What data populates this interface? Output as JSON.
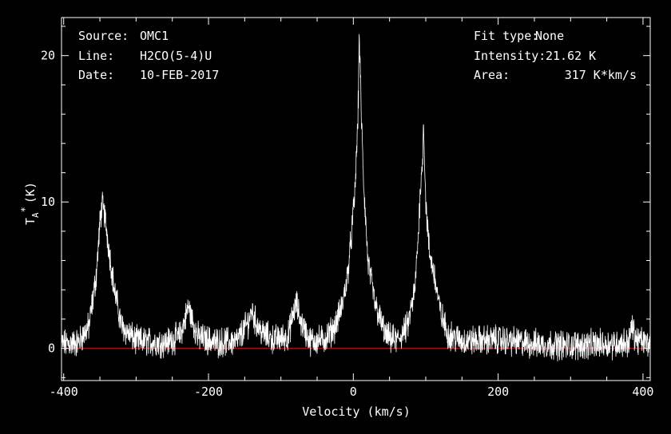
{
  "header": {
    "source_label": "Source:",
    "source_value": "OMC1",
    "line_label": "Line:",
    "line_value": "H2CO(5-4)U",
    "date_label": "Date:",
    "date_value": "10-FEB-2017",
    "fit_label": "Fit type:",
    "fit_value": "None",
    "intensity_label": "Intensity:",
    "intensity_value": "21.62 K",
    "area_label": "Area:",
    "area_value": "317 K*km/s"
  },
  "colors": {
    "background": "#000000",
    "spectrum": "#ffffff",
    "baseline": "#cc0000",
    "frame": "#ffffff"
  },
  "chart_data": {
    "type": "line",
    "xlabel": "Velocity (km/s)",
    "ylabel_main": "T",
    "ylabel_sub": "A",
    "ylabel_sup": "*",
    "ylabel_unit": "(K)",
    "xlim": [
      -403,
      410
    ],
    "ylim": [
      -2.2,
      22.6
    ],
    "xticks": [
      -400,
      -200,
      0,
      200,
      400
    ],
    "yticks": [
      0,
      10,
      20
    ],
    "grid": false,
    "baseline_y": 0,
    "series": [
      {
        "x": [
          -403,
          -380,
          -365,
          -355,
          -350,
          -347,
          -343,
          -338,
          -330,
          -320,
          -300,
          -260,
          -240,
          -232,
          -228,
          -224,
          -215,
          -190,
          -160,
          -145,
          -140,
          -135,
          -125,
          -110,
          -90,
          -82,
          -78,
          -74,
          -60,
          -40,
          -25,
          -15,
          -8,
          -3,
          2,
          5,
          7,
          8,
          9,
          11,
          14,
          20,
          30,
          45,
          60,
          75,
          85,
          90,
          93,
          95,
          97,
          100,
          105,
          112,
          120,
          130,
          150,
          200,
          250,
          300,
          350,
          380,
          385,
          390,
          410
        ],
        "y": [
          0.3,
          0.4,
          1.5,
          5.0,
          8.5,
          9.8,
          9.0,
          7.0,
          4.0,
          1.5,
          0.5,
          0.4,
          0.8,
          2.0,
          2.9,
          2.2,
          0.8,
          0.4,
          0.5,
          1.8,
          2.6,
          1.8,
          1.0,
          0.6,
          0.8,
          2.6,
          3.0,
          2.0,
          0.5,
          0.6,
          1.5,
          3.0,
          5.0,
          7.5,
          10.5,
          14.0,
          17.0,
          21.6,
          20.0,
          16.0,
          11.5,
          6.0,
          3.0,
          0.8,
          0.5,
          1.5,
          4.0,
          8.0,
          11.5,
          12.0,
          15.5,
          10.0,
          6.5,
          5.0,
          2.5,
          1.0,
          0.5,
          0.6,
          0.3,
          0.2,
          0.3,
          0.4,
          1.5,
          0.6,
          0.3
        ]
      }
    ]
  }
}
